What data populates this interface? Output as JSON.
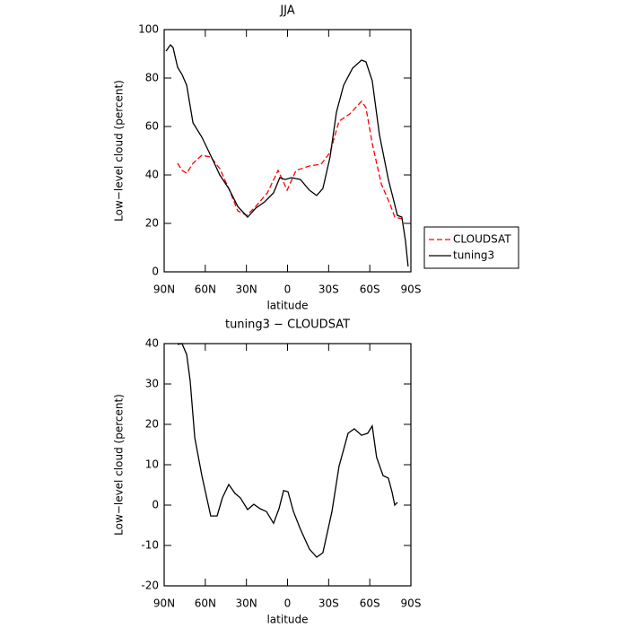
{
  "chart_data": [
    {
      "type": "line",
      "title": "JJA",
      "xlabel": "latitude",
      "ylabel": "Low−level cloud (percent)",
      "xlim": [
        90,
        -90
      ],
      "xticks": [
        {
          "value": 90,
          "label": "90N"
        },
        {
          "value": 60,
          "label": "60N"
        },
        {
          "value": 30,
          "label": "30N"
        },
        0,
        {
          "value": -30,
          "label": "30S"
        },
        {
          "value": -60,
          "label": "60S"
        },
        {
          "value": -90,
          "label": "90S"
        }
      ],
      "ylim": [
        0,
        100
      ],
      "yticks": [
        0,
        20,
        40,
        60,
        80,
        100
      ],
      "series": [
        {
          "name": "CLOUDSAT",
          "color": "#ff0000",
          "dashed": true,
          "x": [
            80.2,
            77,
            73.6,
            69,
            62.5,
            56,
            49.4,
            42.9,
            36.3,
            29.8,
            23.2,
            14.7,
            6.9,
            0.3,
            -6.2,
            -16,
            -24.5,
            -31,
            -37.6,
            -45.4,
            -54,
            -57.2,
            -61.8,
            -68.4,
            -74.9,
            -78.2,
            -83.4
          ],
          "values": [
            44.8,
            41.9,
            40.7,
            44.8,
            48.1,
            47.4,
            42.6,
            34.4,
            25.2,
            23.3,
            27,
            32.6,
            41.9,
            33.7,
            41.9,
            43.7,
            44.4,
            49.3,
            62.2,
            65.2,
            70.4,
            67.8,
            53,
            36.3,
            27.8,
            22.6,
            21.9
          ]
        },
        {
          "name": "tuning3",
          "color": "#000000",
          "dashed": false,
          "x": [
            88.7,
            85.4,
            83.5,
            80.2,
            77,
            73.6,
            69,
            62.5,
            56,
            49.4,
            42.9,
            36.3,
            29.1,
            23.2,
            16.7,
            10.2,
            5.6,
            1.7,
            -2.9,
            -9.4,
            -16,
            -21.3,
            -25.8,
            -31,
            -35.7,
            -40.9,
            -47.4,
            -54,
            -57.2,
            -61.8,
            -67,
            -73.6,
            -76.9,
            -80.2,
            -83.4,
            -86,
            -88
          ],
          "values": [
            91.1,
            93.7,
            92.6,
            84.4,
            81.5,
            77,
            61.5,
            55.6,
            48,
            40,
            34.4,
            27,
            22.6,
            26.3,
            28.9,
            32.6,
            38.9,
            38.1,
            38.9,
            38.1,
            33.7,
            31.5,
            34.4,
            47.4,
            65.9,
            77,
            84,
            87.4,
            86.7,
            78.9,
            56.7,
            38.1,
            30.7,
            23.3,
            22.6,
            13,
            2.2
          ]
        }
      ]
    },
    {
      "type": "line",
      "title": "tuning3 − CLOUDSAT",
      "xlabel": "latitude",
      "ylabel": "Low−level cloud (percent)",
      "xlim": [
        90,
        -90
      ],
      "xticks": [
        {
          "value": 90,
          "label": "90N"
        },
        {
          "value": 60,
          "label": "60N"
        },
        {
          "value": 30,
          "label": "30N"
        },
        0,
        {
          "value": -30,
          "label": "30S"
        },
        {
          "value": -60,
          "label": "60S"
        },
        {
          "value": -90,
          "label": "90S"
        }
      ],
      "ylim": [
        -20,
        40
      ],
      "yticks": [
        -20,
        -10,
        0,
        10,
        20,
        30,
        40
      ],
      "series": [
        {
          "color": "#000000",
          "dashed": false,
          "x": [
            80.2,
            77,
            73.6,
            71,
            67.7,
            62.5,
            56,
            51.4,
            47.5,
            42.9,
            38.3,
            34.4,
            29.1,
            24.6,
            20,
            15.4,
            10.2,
            6.2,
            2.9,
            -0.3,
            -4.3,
            -9.4,
            -16,
            -21.3,
            -25.8,
            -32.4,
            -37.6,
            -44.2,
            -48.7,
            -54,
            -58.5,
            -61.8,
            -65,
            -69.7,
            -73.6,
            -76.2,
            -78.2,
            -80.2
          ],
          "values": [
            39.8,
            40,
            37.3,
            30.7,
            16.7,
            7.3,
            -2.7,
            -2.7,
            1.8,
            5.1,
            2.9,
            1.8,
            -1.1,
            0.2,
            -0.9,
            -1.6,
            -4.5,
            -0.9,
            3.6,
            3.3,
            -1.6,
            -6,
            -10.9,
            -12.9,
            -11.8,
            -1.6,
            9.6,
            17.8,
            18.9,
            17.3,
            17.8,
            19.6,
            11.8,
            7.3,
            6.7,
            3.3,
            0,
            0.7
          ]
        }
      ]
    }
  ]
}
